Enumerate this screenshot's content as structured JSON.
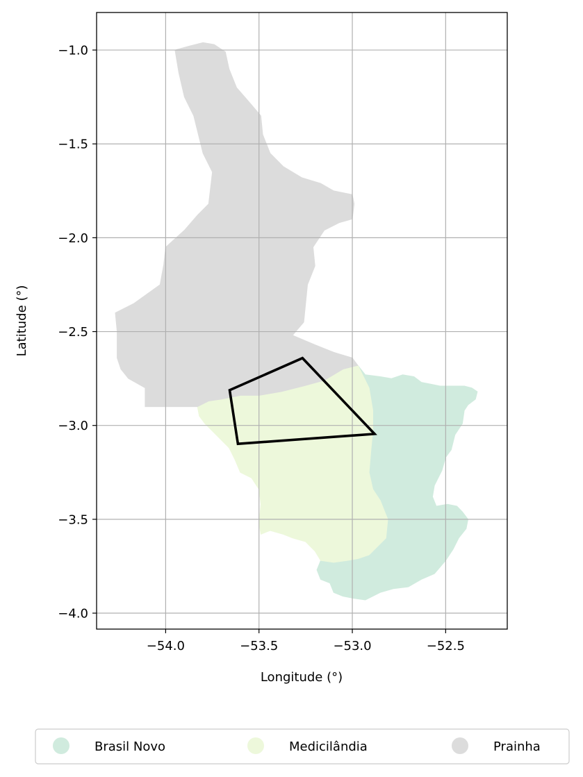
{
  "chart_data": {
    "type": "map",
    "title": "",
    "xlabel": "Longitude (°)",
    "ylabel": "Latitude (°)",
    "xlim": [
      -54.37,
      -52.17
    ],
    "ylim": [
      -4.085,
      -0.8
    ],
    "xticks": [
      -54.0,
      -53.5,
      -53.0,
      -52.5
    ],
    "xtick_labels": [
      "−54.0",
      "−53.5",
      "−53.0",
      "−52.5"
    ],
    "yticks": [
      -1.0,
      -1.5,
      -2.0,
      -2.5,
      -3.0,
      -3.5,
      -4.0
    ],
    "ytick_labels": [
      "−1.0",
      "−1.5",
      "−2.0",
      "−2.5",
      "−3.0",
      "−3.5",
      "−4.0"
    ],
    "grid": true,
    "legend_position": "bottom-center",
    "regions": [
      {
        "name": "Brasil Novo",
        "color": "#d0ebde",
        "polygons": [
          [
            [
              -52.97,
              -2.68
            ],
            [
              -52.93,
              -2.73
            ],
            [
              -52.85,
              -2.74
            ],
            [
              -52.79,
              -2.75
            ],
            [
              -52.73,
              -2.73
            ],
            [
              -52.67,
              -2.74
            ],
            [
              -52.63,
              -2.77
            ],
            [
              -52.58,
              -2.78
            ],
            [
              -52.53,
              -2.79
            ],
            [
              -52.46,
              -2.79
            ],
            [
              -52.4,
              -2.79
            ],
            [
              -52.36,
              -2.8
            ],
            [
              -52.33,
              -2.82
            ],
            [
              -52.34,
              -2.86
            ],
            [
              -52.38,
              -2.89
            ],
            [
              -52.4,
              -2.92
            ],
            [
              -52.41,
              -2.99
            ],
            [
              -52.45,
              -3.05
            ],
            [
              -52.47,
              -3.13
            ],
            [
              -52.5,
              -3.17
            ],
            [
              -52.52,
              -3.24
            ],
            [
              -52.56,
              -3.32
            ],
            [
              -52.57,
              -3.38
            ],
            [
              -52.55,
              -3.43
            ],
            [
              -52.49,
              -3.42
            ],
            [
              -52.44,
              -3.43
            ],
            [
              -52.41,
              -3.46
            ],
            [
              -52.38,
              -3.5
            ],
            [
              -52.39,
              -3.55
            ],
            [
              -52.43,
              -3.6
            ],
            [
              -52.46,
              -3.66
            ],
            [
              -52.5,
              -3.72
            ],
            [
              -52.56,
              -3.79
            ],
            [
              -52.63,
              -3.82
            ],
            [
              -52.7,
              -3.86
            ],
            [
              -52.78,
              -3.87
            ],
            [
              -52.85,
              -3.89
            ],
            [
              -52.93,
              -3.93
            ],
            [
              -53.0,
              -3.92
            ],
            [
              -53.05,
              -3.91
            ],
            [
              -53.1,
              -3.89
            ],
            [
              -53.12,
              -3.84
            ],
            [
              -53.17,
              -3.82
            ],
            [
              -53.19,
              -3.77
            ],
            [
              -53.17,
              -3.72
            ],
            [
              -53.1,
              -3.73
            ],
            [
              -53.03,
              -3.72
            ],
            [
              -52.97,
              -3.71
            ],
            [
              -52.91,
              -3.69
            ],
            [
              -52.82,
              -3.6
            ],
            [
              -52.81,
              -3.5
            ],
            [
              -52.85,
              -3.4
            ],
            [
              -52.89,
              -3.34
            ],
            [
              -52.91,
              -3.25
            ],
            [
              -52.9,
              -3.13
            ],
            [
              -52.89,
              -3.03
            ],
            [
              -52.89,
              -2.92
            ],
            [
              -52.91,
              -2.8
            ]
          ]
        ]
      },
      {
        "name": "Medicilândia",
        "color": "#edf8db",
        "polygons": [
          [
            [
              -53.83,
              -2.9
            ],
            [
              -53.77,
              -2.87
            ],
            [
              -53.7,
              -2.86
            ],
            [
              -53.6,
              -2.84
            ],
            [
              -53.5,
              -2.84
            ],
            [
              -53.38,
              -2.82
            ],
            [
              -53.26,
              -2.79
            ],
            [
              -53.15,
              -2.76
            ],
            [
              -53.05,
              -2.7
            ],
            [
              -52.97,
              -2.68
            ],
            [
              -52.91,
              -2.8
            ],
            [
              -52.89,
              -2.92
            ],
            [
              -52.89,
              -3.03
            ],
            [
              -52.9,
              -3.13
            ],
            [
              -52.91,
              -3.25
            ],
            [
              -52.89,
              -3.34
            ],
            [
              -52.85,
              -3.4
            ],
            [
              -52.81,
              -3.5
            ],
            [
              -52.82,
              -3.6
            ],
            [
              -52.91,
              -3.69
            ],
            [
              -52.97,
              -3.71
            ],
            [
              -53.03,
              -3.72
            ],
            [
              -53.1,
              -3.73
            ],
            [
              -53.17,
              -3.72
            ],
            [
              -53.2,
              -3.67
            ],
            [
              -53.25,
              -3.62
            ],
            [
              -53.32,
              -3.6
            ],
            [
              -53.37,
              -3.58
            ],
            [
              -53.44,
              -3.56
            ],
            [
              -53.49,
              -3.58
            ],
            [
              -53.5,
              -3.52
            ],
            [
              -53.49,
              -3.42
            ],
            [
              -53.5,
              -3.34
            ],
            [
              -53.54,
              -3.28
            ],
            [
              -53.6,
              -3.25
            ],
            [
              -53.63,
              -3.18
            ],
            [
              -53.66,
              -3.12
            ],
            [
              -53.71,
              -3.07
            ],
            [
              -53.75,
              -3.03
            ],
            [
              -53.79,
              -2.99
            ],
            [
              -53.82,
              -2.95
            ]
          ]
        ]
      },
      {
        "name": "Prainha",
        "color": "#dcdcdc",
        "polygons": [
          [
            [
              -53.95,
              -1.0
            ],
            [
              -53.88,
              -0.98
            ],
            [
              -53.8,
              -0.96
            ],
            [
              -53.74,
              -0.97
            ],
            [
              -53.68,
              -1.01
            ],
            [
              -53.66,
              -1.1
            ],
            [
              -53.62,
              -1.2
            ],
            [
              -53.55,
              -1.28
            ],
            [
              -53.49,
              -1.35
            ],
            [
              -53.48,
              -1.45
            ],
            [
              -53.44,
              -1.55
            ],
            [
              -53.37,
              -1.62
            ],
            [
              -53.27,
              -1.68
            ],
            [
              -53.17,
              -1.71
            ],
            [
              -53.1,
              -1.75
            ],
            [
              -53.0,
              -1.77
            ],
            [
              -52.99,
              -1.82
            ],
            [
              -53.0,
              -1.9
            ],
            [
              -53.07,
              -1.92
            ],
            [
              -53.15,
              -1.96
            ],
            [
              -53.21,
              -2.05
            ],
            [
              -53.2,
              -2.15
            ],
            [
              -53.24,
              -2.25
            ],
            [
              -53.25,
              -2.35
            ],
            [
              -53.26,
              -2.45
            ],
            [
              -53.32,
              -2.52
            ],
            [
              -53.2,
              -2.57
            ],
            [
              -53.1,
              -2.61
            ],
            [
              -53.0,
              -2.64
            ],
            [
              -52.97,
              -2.68
            ],
            [
              -53.05,
              -2.7
            ],
            [
              -53.15,
              -2.76
            ],
            [
              -53.26,
              -2.79
            ],
            [
              -53.38,
              -2.82
            ],
            [
              -53.5,
              -2.84
            ],
            [
              -53.6,
              -2.84
            ],
            [
              -53.7,
              -2.86
            ],
            [
              -53.77,
              -2.87
            ],
            [
              -53.83,
              -2.9
            ],
            [
              -54.11,
              -2.9
            ],
            [
              -54.11,
              -2.8
            ],
            [
              -54.2,
              -2.75
            ],
            [
              -54.24,
              -2.7
            ],
            [
              -54.26,
              -2.64
            ],
            [
              -54.26,
              -2.5
            ],
            [
              -54.27,
              -2.4
            ],
            [
              -54.17,
              -2.35
            ],
            [
              -54.1,
              -2.3
            ],
            [
              -54.03,
              -2.25
            ],
            [
              -54.01,
              -2.14
            ],
            [
              -54.0,
              -2.05
            ],
            [
              -53.9,
              -1.96
            ],
            [
              -53.83,
              -1.88
            ],
            [
              -53.77,
              -1.82
            ],
            [
              -53.75,
              -1.65
            ],
            [
              -53.8,
              -1.55
            ],
            [
              -53.85,
              -1.35
            ],
            [
              -53.9,
              -1.25
            ],
            [
              -53.93,
              -1.12
            ]
          ]
        ]
      }
    ],
    "overlay_polygon": {
      "stroke": "#000000",
      "points": [
        [
          -53.657,
          -2.812
        ],
        [
          -53.267,
          -2.641
        ],
        [
          -52.881,
          -3.045
        ],
        [
          -53.613,
          -3.098
        ]
      ]
    },
    "legend": [
      "Brasil Novo",
      "Medicilândia",
      "Prainha"
    ]
  }
}
